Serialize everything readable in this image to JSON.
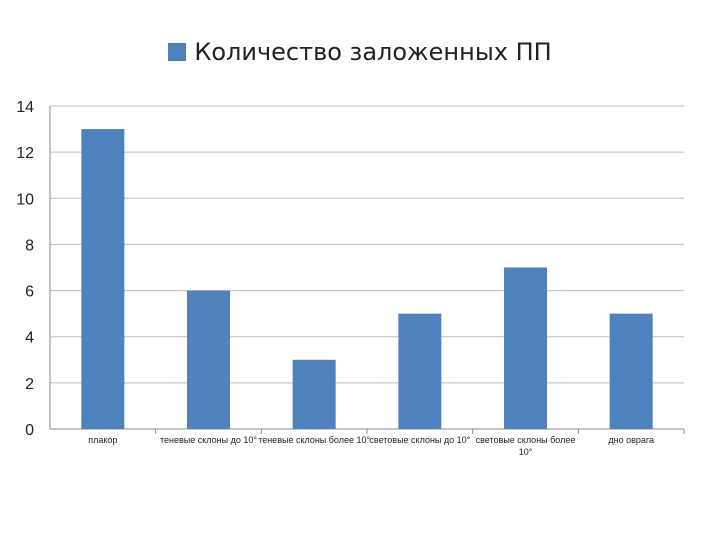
{
  "chart_data": {
    "type": "bar",
    "title": "",
    "xlabel": "",
    "ylabel": "",
    "ylim": [
      0,
      14
    ],
    "yticks": [
      0,
      2,
      4,
      6,
      8,
      10,
      12,
      14
    ],
    "grid": true,
    "legend_position": "top",
    "categories": [
      "плакор",
      "теневые склоны до 10°",
      "теневые склоны более 10°",
      "световые склоны до 10°",
      "световые склоны более 10°",
      "дно оврага"
    ],
    "series": [
      {
        "name": "Количество заложенных ПП",
        "color": "#4f81bd",
        "values": [
          13,
          6,
          3,
          5,
          7,
          5
        ]
      }
    ]
  }
}
